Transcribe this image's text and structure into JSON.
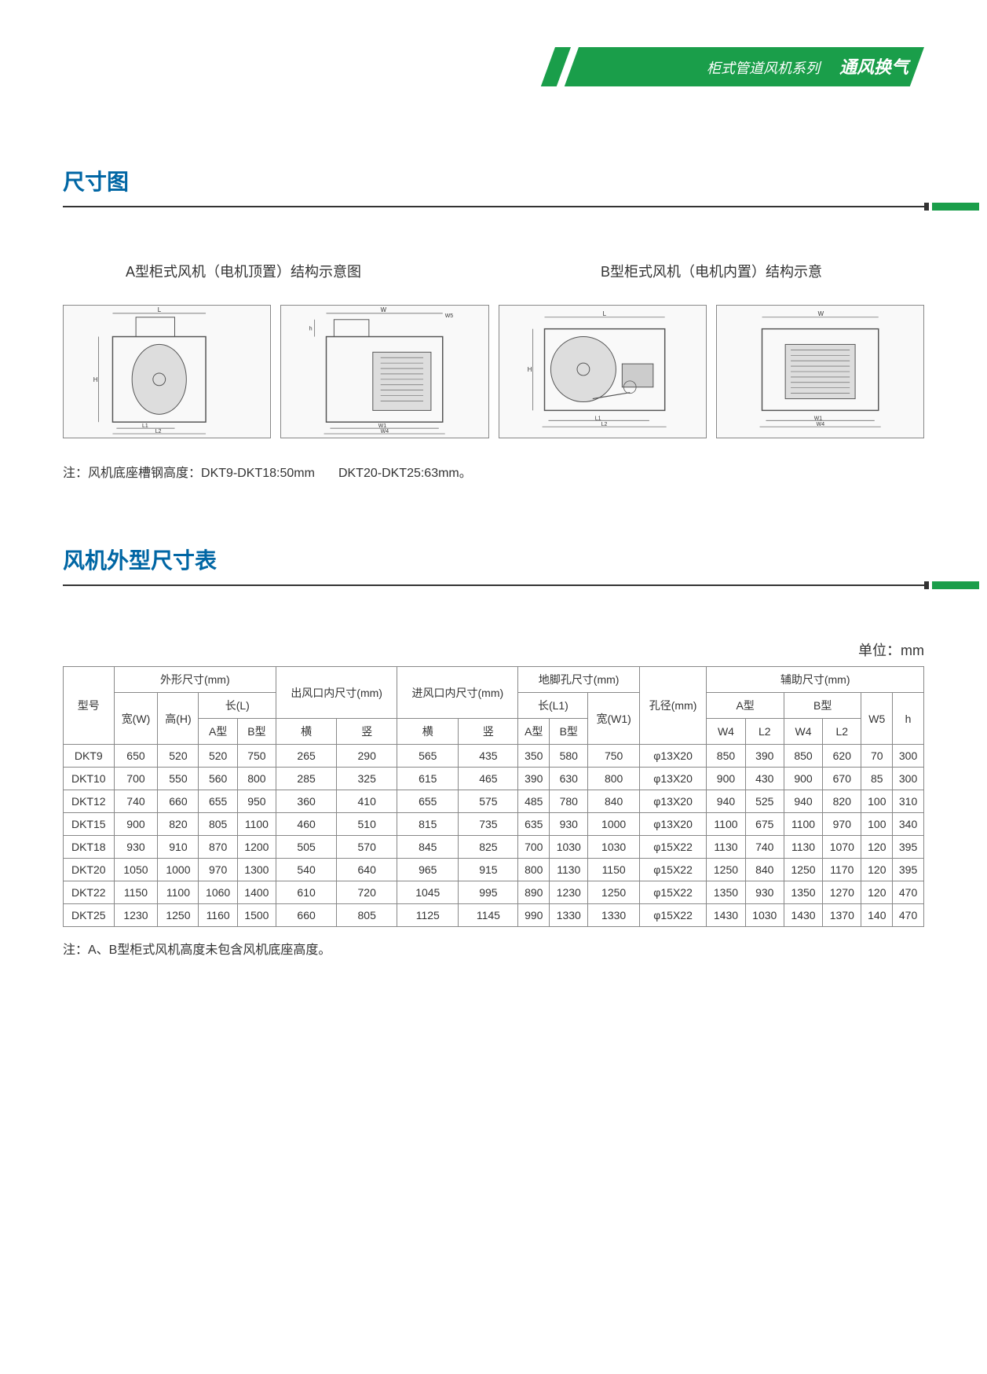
{
  "header": {
    "subtitle": "柜式管道风机系列",
    "title": "通风换气"
  },
  "section1": {
    "title": "尺寸图",
    "diagramTitleA": "A型柜式风机（电机顶置）结构示意图",
    "diagramTitleB": "B型柜式风机（电机内置）结构示意",
    "note_prefix": "注：风机底座槽钢高度：",
    "note_part1": "DKT9-DKT18:50mm",
    "note_part2": "DKT20-DKT25:63mm。"
  },
  "section2": {
    "title": "风机外型尺寸表",
    "unit_label": "单位：mm",
    "headers": {
      "model": "型号",
      "outline": "外形尺寸(mm)",
      "outlet": "出风口内尺寸(mm)",
      "inlet": "进风口内尺寸(mm)",
      "anchor": "地脚孔尺寸(mm)",
      "hole": "孔径(mm)",
      "aux": "辅助尺寸(mm)",
      "width_w": "宽(W)",
      "height_h": "高(H)",
      "length_l": "长(L)",
      "a_type": "A型",
      "b_type": "B型",
      "horiz": "横",
      "vert": "竖",
      "length_l1": "长(L1)",
      "width_w1": "宽(W1)",
      "w4": "W4",
      "l2": "L2",
      "w5": "W5",
      "h": "h"
    },
    "rows": [
      {
        "model": "DKT9",
        "w": "650",
        "h": "520",
        "la": "520",
        "lb": "750",
        "oh": "265",
        "ov": "290",
        "ih": "565",
        "iv": "435",
        "l1a": "350",
        "l1b": "580",
        "w1": "750",
        "hole": "φ13X20",
        "aw4": "850",
        "al2": "390",
        "bw4": "850",
        "bl2": "620",
        "w5": "70",
        "hh": "300"
      },
      {
        "model": "DKT10",
        "w": "700",
        "h": "550",
        "la": "560",
        "lb": "800",
        "oh": "285",
        "ov": "325",
        "ih": "615",
        "iv": "465",
        "l1a": "390",
        "l1b": "630",
        "w1": "800",
        "hole": "φ13X20",
        "aw4": "900",
        "al2": "430",
        "bw4": "900",
        "bl2": "670",
        "w5": "85",
        "hh": "300"
      },
      {
        "model": "DKT12",
        "w": "740",
        "h": "660",
        "la": "655",
        "lb": "950",
        "oh": "360",
        "ov": "410",
        "ih": "655",
        "iv": "575",
        "l1a": "485",
        "l1b": "780",
        "w1": "840",
        "hole": "φ13X20",
        "aw4": "940",
        "al2": "525",
        "bw4": "940",
        "bl2": "820",
        "w5": "100",
        "hh": "310"
      },
      {
        "model": "DKT15",
        "w": "900",
        "h": "820",
        "la": "805",
        "lb": "1100",
        "oh": "460",
        "ov": "510",
        "ih": "815",
        "iv": "735",
        "l1a": "635",
        "l1b": "930",
        "w1": "1000",
        "hole": "φ13X20",
        "aw4": "1100",
        "al2": "675",
        "bw4": "1100",
        "bl2": "970",
        "w5": "100",
        "hh": "340"
      },
      {
        "model": "DKT18",
        "w": "930",
        "h": "910",
        "la": "870",
        "lb": "1200",
        "oh": "505",
        "ov": "570",
        "ih": "845",
        "iv": "825",
        "l1a": "700",
        "l1b": "1030",
        "w1": "1030",
        "hole": "φ15X22",
        "aw4": "1130",
        "al2": "740",
        "bw4": "1130",
        "bl2": "1070",
        "w5": "120",
        "hh": "395"
      },
      {
        "model": "DKT20",
        "w": "1050",
        "h": "1000",
        "la": "970",
        "lb": "1300",
        "oh": "540",
        "ov": "640",
        "ih": "965",
        "iv": "915",
        "l1a": "800",
        "l1b": "1130",
        "w1": "1150",
        "hole": "φ15X22",
        "aw4": "1250",
        "al2": "840",
        "bw4": "1250",
        "bl2": "1170",
        "w5": "120",
        "hh": "395"
      },
      {
        "model": "DKT22",
        "w": "1150",
        "h": "1100",
        "la": "1060",
        "lb": "1400",
        "oh": "610",
        "ov": "720",
        "ih": "1045",
        "iv": "995",
        "l1a": "890",
        "l1b": "1230",
        "w1": "1250",
        "hole": "φ15X22",
        "aw4": "1350",
        "al2": "930",
        "bw4": "1350",
        "bl2": "1270",
        "w5": "120",
        "hh": "470"
      },
      {
        "model": "DKT25",
        "w": "1230",
        "h": "1250",
        "la": "1160",
        "lb": "1500",
        "oh": "660",
        "ov": "805",
        "ih": "1125",
        "iv": "1145",
        "l1a": "990",
        "l1b": "1330",
        "w1": "1330",
        "hole": "φ15X22",
        "aw4": "1430",
        "al2": "1030",
        "bw4": "1430",
        "bl2": "1370",
        "w5": "140",
        "hh": "470"
      }
    ],
    "footnote": "注：A、B型柜式风机高度未包含风机底座高度。"
  },
  "diagrams": {
    "labels": {
      "L": "L",
      "W": "W",
      "H": "H",
      "h": "h",
      "L1": "L1",
      "L2": "L2",
      "W1": "W1",
      "W4": "W4",
      "W5": "W5"
    }
  },
  "colors": {
    "brand_green": "#1a9e4a",
    "title_blue": "#0066a4",
    "text": "#333333",
    "border": "#888888",
    "bg": "#ffffff"
  }
}
